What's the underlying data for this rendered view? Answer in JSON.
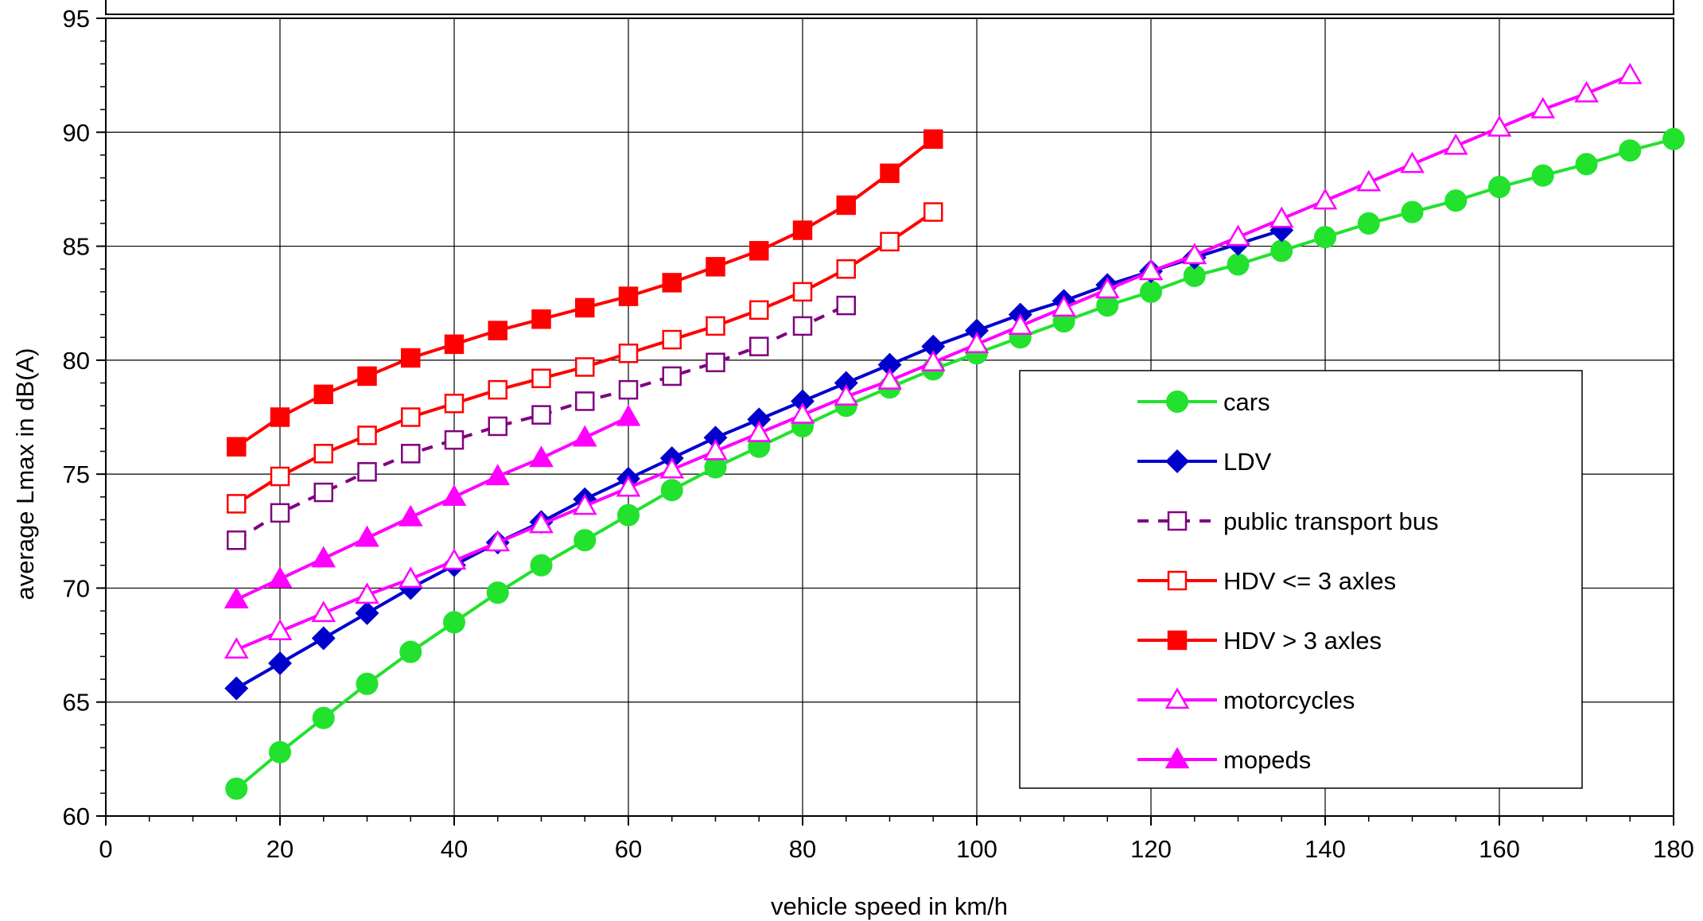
{
  "chart_data": {
    "type": "line",
    "title": "",
    "xlabel": "vehicle speed in km/h",
    "ylabel": "average Lmax in dB(A)",
    "xlim": [
      0,
      180
    ],
    "ylim": [
      60,
      95
    ],
    "x_ticks": [
      0,
      20,
      40,
      60,
      80,
      100,
      120,
      140,
      160,
      180
    ],
    "y_ticks": [
      60,
      65,
      70,
      75,
      80,
      85,
      90,
      95
    ],
    "grid": true,
    "legend_position": "bottom-right",
    "series": [
      {
        "name": "cars",
        "color": "#22e22e",
        "marker": "circle",
        "filled": true,
        "dashed": false,
        "x": [
          15,
          20,
          25,
          30,
          35,
          40,
          45,
          50,
          55,
          60,
          65,
          70,
          75,
          80,
          85,
          90,
          95,
          100,
          105,
          110,
          115,
          120,
          125,
          130,
          135,
          140,
          145,
          150,
          155,
          160,
          165,
          170,
          175,
          180
        ],
        "y": [
          61.2,
          62.8,
          64.3,
          65.8,
          67.2,
          68.5,
          69.8,
          71.0,
          72.1,
          73.2,
          74.3,
          75.3,
          76.2,
          77.1,
          78.0,
          78.8,
          79.6,
          80.3,
          81.0,
          81.7,
          82.4,
          83.0,
          83.7,
          84.2,
          84.8,
          85.4,
          86.0,
          86.5,
          87.0,
          87.6,
          88.1,
          88.6,
          89.2,
          89.7
        ]
      },
      {
        "name": "LDV",
        "color": "#0000cc",
        "marker": "diamond",
        "filled": true,
        "dashed": false,
        "x": [
          15,
          20,
          25,
          30,
          35,
          40,
          45,
          50,
          55,
          60,
          65,
          70,
          75,
          80,
          85,
          90,
          95,
          100,
          105,
          110,
          115,
          120,
          125,
          130,
          135
        ],
        "y": [
          65.6,
          66.7,
          67.8,
          68.9,
          70.0,
          71.0,
          72.0,
          72.9,
          73.9,
          74.8,
          75.7,
          76.6,
          77.4,
          78.2,
          79.0,
          79.8,
          80.6,
          81.3,
          82.0,
          82.6,
          83.3,
          83.9,
          84.5,
          85.1,
          85.7
        ]
      },
      {
        "name": "public transport bus",
        "color": "#800080",
        "marker": "square",
        "filled": false,
        "dashed": true,
        "x": [
          15,
          20,
          25,
          30,
          35,
          40,
          45,
          50,
          55,
          60,
          65,
          70,
          75,
          80,
          85
        ],
        "y": [
          72.1,
          73.3,
          74.2,
          75.1,
          75.9,
          76.5,
          77.1,
          77.6,
          78.2,
          78.7,
          79.3,
          79.9,
          80.6,
          81.5,
          82.4
        ]
      },
      {
        "name": "HDV <= 3 axles",
        "color": "#ff0000",
        "marker": "square",
        "filled": false,
        "dashed": false,
        "x": [
          15,
          20,
          25,
          30,
          35,
          40,
          45,
          50,
          55,
          60,
          65,
          70,
          75,
          80,
          85,
          90,
          95
        ],
        "y": [
          73.7,
          74.9,
          75.9,
          76.7,
          77.5,
          78.1,
          78.7,
          79.2,
          79.7,
          80.3,
          80.9,
          81.5,
          82.2,
          83.0,
          84.0,
          85.2,
          86.5
        ]
      },
      {
        "name": "HDV > 3 axles",
        "color": "#ff0000",
        "marker": "square",
        "filled": true,
        "dashed": false,
        "x": [
          15,
          20,
          25,
          30,
          35,
          40,
          45,
          50,
          55,
          60,
          65,
          70,
          75,
          80,
          85,
          90,
          95
        ],
        "y": [
          76.2,
          77.5,
          78.5,
          79.3,
          80.1,
          80.7,
          81.3,
          81.8,
          82.3,
          82.8,
          83.4,
          84.1,
          84.8,
          85.7,
          86.8,
          88.2,
          89.7
        ]
      },
      {
        "name": "motorcycles",
        "color": "#ff00ff",
        "marker": "triangle",
        "filled": false,
        "dashed": false,
        "x": [
          15,
          20,
          25,
          30,
          35,
          40,
          45,
          50,
          55,
          60,
          65,
          70,
          75,
          80,
          85,
          90,
          95,
          100,
          105,
          110,
          115,
          120,
          125,
          130,
          135,
          140,
          145,
          150,
          155,
          160,
          165,
          170,
          175
        ],
        "y": [
          67.3,
          68.1,
          68.9,
          69.7,
          70.4,
          71.2,
          72.0,
          72.8,
          73.6,
          74.4,
          75.2,
          76.0,
          76.8,
          77.6,
          78.4,
          79.1,
          79.9,
          80.7,
          81.5,
          82.3,
          83.1,
          83.9,
          84.6,
          85.4,
          86.2,
          87.0,
          87.8,
          88.6,
          89.4,
          90.2,
          91.0,
          91.7,
          92.5
        ]
      },
      {
        "name": "mopeds",
        "color": "#ff00ff",
        "marker": "triangle",
        "filled": true,
        "dashed": false,
        "x": [
          15,
          20,
          25,
          30,
          35,
          40,
          45,
          50,
          55,
          60
        ],
        "y": [
          69.5,
          70.4,
          71.3,
          72.2,
          73.1,
          74.0,
          74.9,
          75.7,
          76.6,
          77.5
        ]
      }
    ]
  }
}
